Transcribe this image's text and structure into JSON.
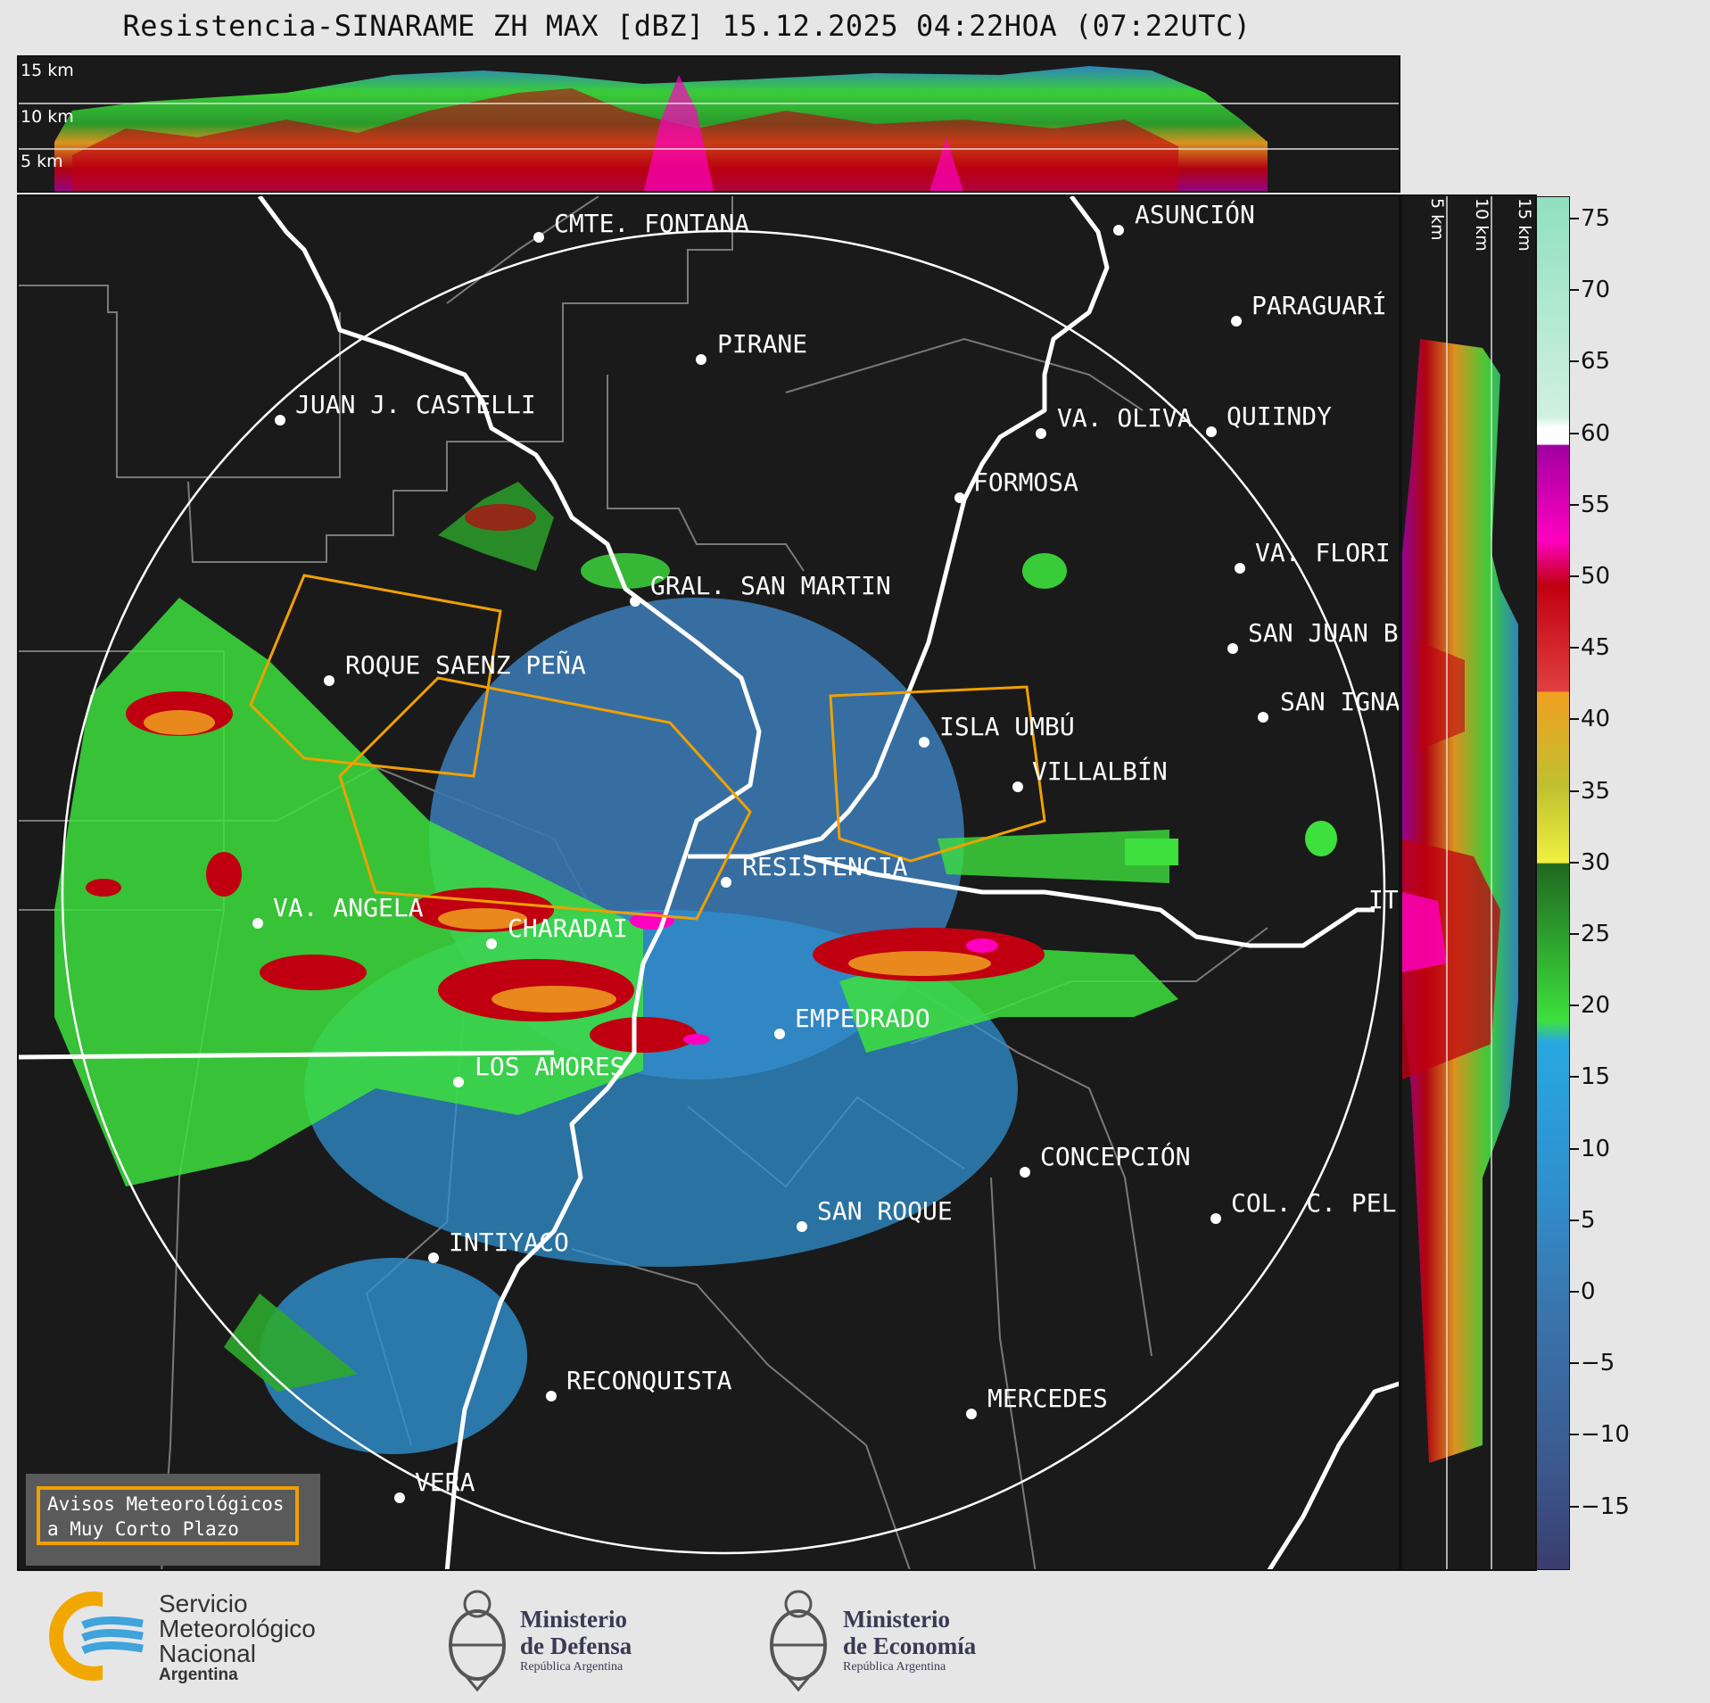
{
  "title": "Resistencia-SINARAME ZH MAX [dBZ] 15.12.2025 04:22HOA (07:22UTC)",
  "top_panel": {
    "km_labels": [
      "15 km",
      "10 km",
      "5 km"
    ]
  },
  "side_panel": {
    "km_labels": [
      "5 km",
      "10 km",
      "15 km"
    ]
  },
  "colorbar": {
    "labels": [
      "75",
      "70",
      "65",
      "60",
      "55",
      "50",
      "45",
      "40",
      "35",
      "30",
      "25",
      "20",
      "15",
      "10",
      "5",
      "0",
      "−5",
      "−10",
      "−15"
    ],
    "colors": {
      "-20": "#3b3d6e",
      "-10": "#3b5a8f",
      "0": "#3a78b0",
      "10": "#2f90cf",
      "17": "#28a8e0",
      "18": "#3de03d",
      "25": "#2ca82c",
      "29": "#206820",
      "30": "#f0f040",
      "37": "#c0c030",
      "40": "#f0a020",
      "44": "#e04040",
      "50": "#c00010",
      "52": "#ff0080",
      "57": "#a000a0",
      "60": "#ffffff",
      "62": "#d0f0e0",
      "75": "#90e0c0"
    }
  },
  "cities": [
    {
      "name": "CMTE. FONTANA"
    },
    {
      "name": "ASUNCIÓN"
    },
    {
      "name": "PARAGUARÍ"
    },
    {
      "name": "PIRANE"
    },
    {
      "name": "JUAN J. CASTELLI"
    },
    {
      "name": "VA. OLIVA"
    },
    {
      "name": "QUIINDY"
    },
    {
      "name": "FORMOSA"
    },
    {
      "name": "VA. FLORI"
    },
    {
      "name": "GRAL. SAN MARTIN"
    },
    {
      "name": "SAN JUAN B"
    },
    {
      "name": "ROQUE SAENZ PEÑA"
    },
    {
      "name": "SAN IGNA"
    },
    {
      "name": "ISLA UMBÚ"
    },
    {
      "name": "VILLALBÍN"
    },
    {
      "name": "RESISTENCIA"
    },
    {
      "name": "IT"
    },
    {
      "name": "VA. ANGELA"
    },
    {
      "name": "CHARADAI"
    },
    {
      "name": "EMPEDRADO"
    },
    {
      "name": "LOS AMORES"
    },
    {
      "name": "CONCEPCIÓN"
    },
    {
      "name": "SAN ROQUE"
    },
    {
      "name": "COL. C. PEL"
    },
    {
      "name": "INTIYACO"
    },
    {
      "name": "RECONQUISTA"
    },
    {
      "name": "MERCEDES"
    },
    {
      "name": "VERA"
    }
  ],
  "legend": {
    "line1": "Avisos Meteorológicos",
    "line2": "a Muy Corto Plazo",
    "color": "#f0a000"
  },
  "logos": {
    "smn": {
      "line1": "Servicio",
      "line2": "Meteorológico",
      "line3": "Nacional",
      "line4": "Argentina",
      "icon": "smn-logo-icon"
    },
    "defensa": {
      "line1": "Ministerio",
      "line2": "de Defensa",
      "line3": "República Argentina",
      "icon": "coat-of-arms-icon"
    },
    "economia": {
      "line1": "Ministerio",
      "line2": "de Economía",
      "line3": "República Argentina",
      "icon": "coat-of-arms-icon"
    }
  }
}
